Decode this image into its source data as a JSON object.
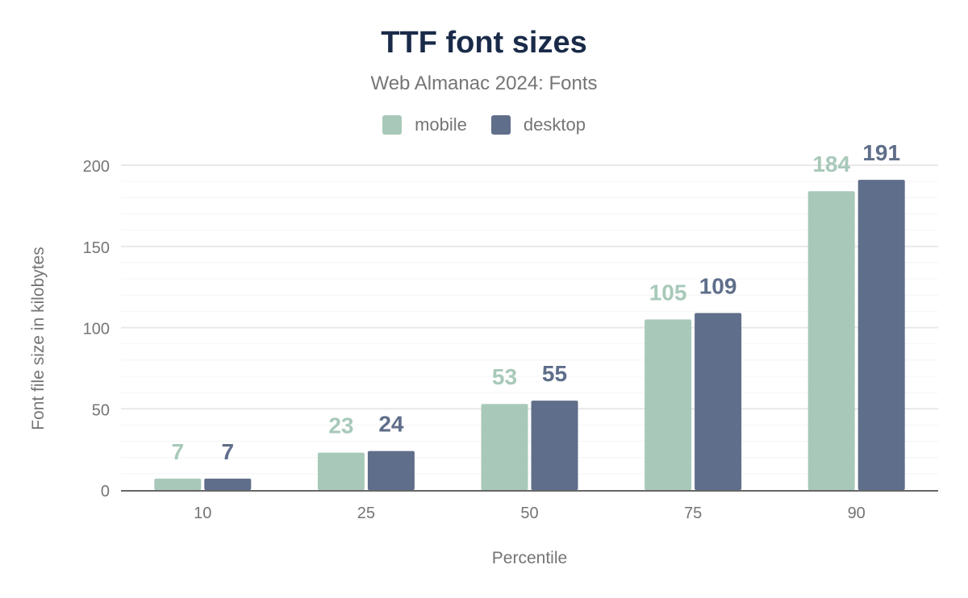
{
  "chart_data": {
    "type": "bar",
    "title": "TTF font sizes",
    "subtitle": "Web Almanac 2024: Fonts",
    "xlabel": "Percentile",
    "ylabel": "Font file size in kilobytes",
    "categories": [
      "10",
      "25",
      "50",
      "75",
      "90"
    ],
    "series": [
      {
        "name": "mobile",
        "color": "#a8c9b9",
        "values": [
          7,
          23,
          53,
          105,
          184
        ]
      },
      {
        "name": "desktop",
        "color": "#5f6e8a",
        "values": [
          7,
          24,
          55,
          109,
          191
        ]
      }
    ],
    "ylim": [
      0,
      200
    ],
    "yticks": [
      0,
      50,
      100,
      150,
      200
    ],
    "grid": true,
    "legend": "top",
    "data_labels": true
  }
}
